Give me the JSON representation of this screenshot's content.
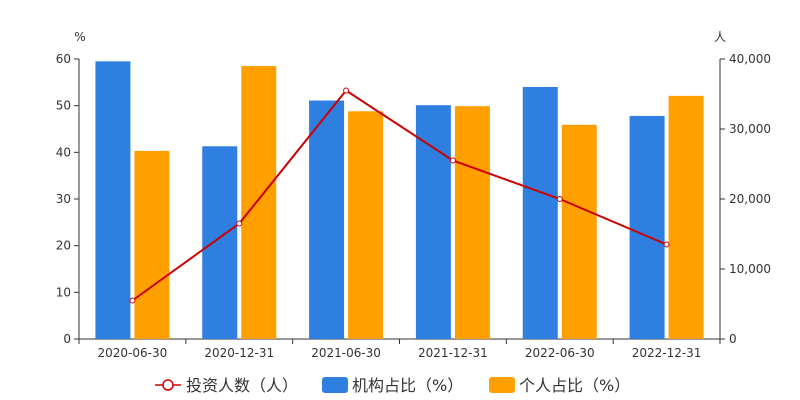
{
  "chart_data": {
    "type": "bar",
    "categories": [
      "2020-06-30",
      "2020-12-31",
      "2021-06-30",
      "2021-12-31",
      "2022-06-30",
      "2022-12-31"
    ],
    "left_axis": {
      "unit": "%",
      "min": 0,
      "max": 60,
      "ticks": [
        "0",
        "10",
        "20",
        "30",
        "40",
        "50",
        "60"
      ]
    },
    "right_axis": {
      "unit": "人",
      "min": 0,
      "max": 40000,
      "ticks": [
        "0",
        "10,000",
        "20,000",
        "30,000",
        "40,000"
      ]
    },
    "series": [
      {
        "name": "投资人数（人）",
        "kind": "line",
        "axis": "right",
        "color": "#cc0000",
        "values": [
          5500,
          16500,
          35500,
          25500,
          20000,
          13500
        ]
      },
      {
        "name": "机构占比（%）",
        "kind": "bar",
        "axis": "left",
        "color": "#2f7fe0",
        "values": [
          59.5,
          41.3,
          51.1,
          50.1,
          54.0,
          47.8
        ]
      },
      {
        "name": "个人占比（%）",
        "kind": "bar",
        "axis": "left",
        "color": "#ff9f00",
        "values": [
          40.3,
          58.5,
          48.8,
          49.9,
          45.9,
          52.1
        ]
      }
    ],
    "legend_position": "bottom",
    "grid": false
  }
}
